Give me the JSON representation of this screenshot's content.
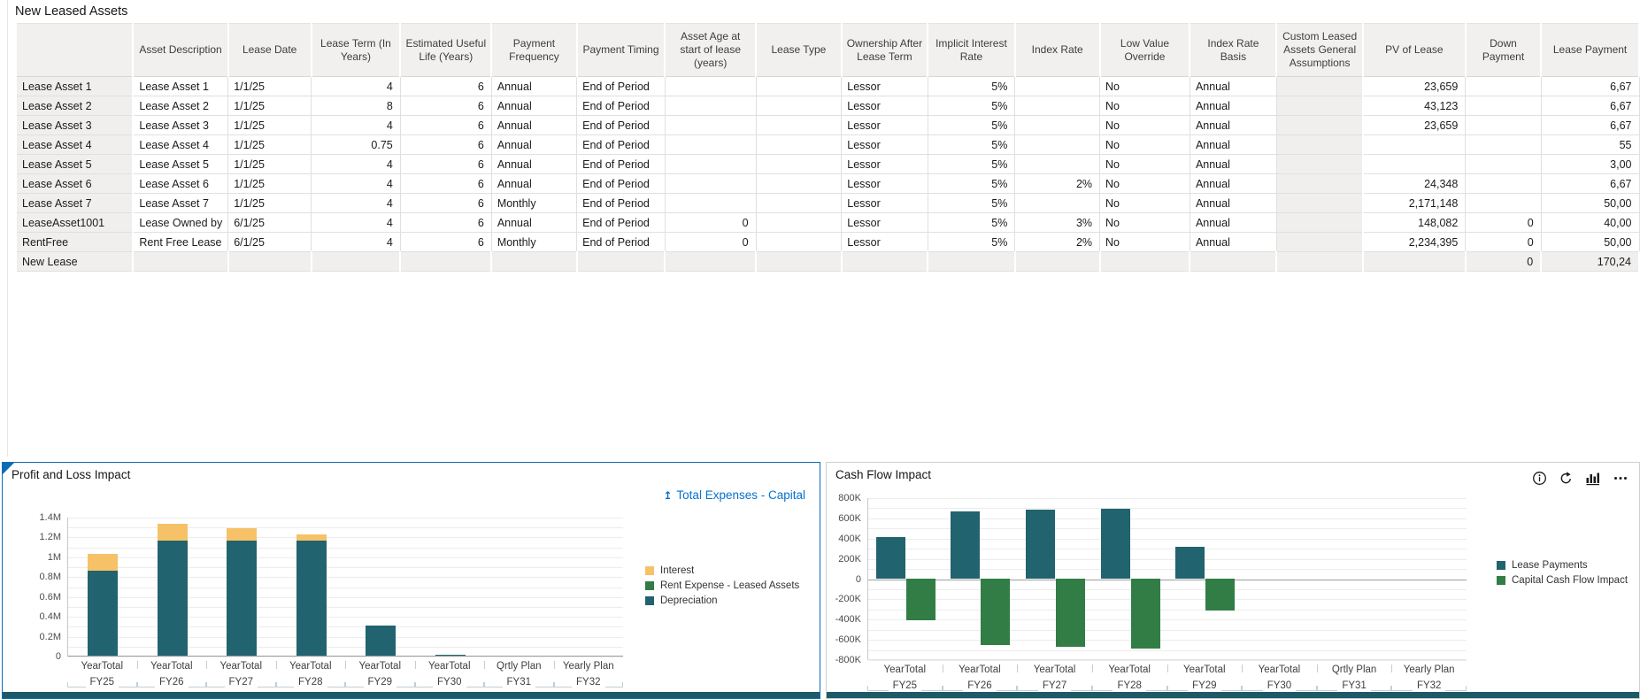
{
  "colors": {
    "accent_blue": "#0572CE",
    "teal": "#21636E",
    "green": "#317D45",
    "amber": "#F6C167",
    "panel_border": "#0A6CB5"
  },
  "table": {
    "title": "New Leased Assets",
    "columns": [
      "",
      "Asset Description",
      "Lease Date",
      "Lease Term (In Years)",
      "Estimated Useful Life (Years)",
      "Payment Frequency",
      "Payment Timing",
      "Asset Age at start of lease (years)",
      "Lease Type",
      "Ownership After Lease Term",
      "Implicit Interest Rate",
      "Index Rate",
      "Low Value Override",
      "Index Rate Basis",
      "Custom Leased Assets General Assumptions",
      "PV of Lease",
      "Down Payment",
      "Lease Payment"
    ],
    "rows": [
      {
        "label": "Lease Asset 1",
        "cells": [
          "Lease Asset 1",
          "1/1/25",
          "4",
          "6",
          "Annual",
          "End of Period",
          "",
          "",
          "Lessor",
          "5%",
          "",
          "No",
          "Annual",
          "",
          "23,659",
          "",
          "6,67"
        ]
      },
      {
        "label": "Lease Asset 2",
        "cells": [
          "Lease Asset 2",
          "1/1/25",
          "8",
          "6",
          "Annual",
          "End of Period",
          "",
          "",
          "Lessor",
          "5%",
          "",
          "No",
          "Annual",
          "",
          "43,123",
          "",
          "6,67"
        ]
      },
      {
        "label": "Lease Asset 3",
        "cells": [
          "Lease Asset 3",
          "1/1/25",
          "4",
          "6",
          "Annual",
          "End of Period",
          "",
          "",
          "Lessor",
          "5%",
          "",
          "No",
          "Annual",
          "",
          "23,659",
          "",
          "6,67"
        ]
      },
      {
        "label": "Lease Asset 4",
        "cells": [
          "Lease Asset 4",
          "1/1/25",
          "0.75",
          "6",
          "Annual",
          "End of Period",
          "",
          "",
          "Lessor",
          "5%",
          "",
          "No",
          "Annual",
          "",
          "",
          "",
          "55"
        ]
      },
      {
        "label": "Lease Asset 5",
        "cells": [
          "Lease Asset 5",
          "1/1/25",
          "4",
          "6",
          "Annual",
          "End of Period",
          "",
          "",
          "Lessor",
          "5%",
          "",
          "No",
          "Annual",
          "",
          "",
          "",
          "3,00"
        ]
      },
      {
        "label": "Lease Asset 6",
        "cells": [
          "Lease Asset 6",
          "1/1/25",
          "4",
          "6",
          "Annual",
          "End of Period",
          "",
          "",
          "Lessor",
          "5%",
          "2%",
          "No",
          "Annual",
          "",
          "24,348",
          "",
          "6,67"
        ]
      },
      {
        "label": "Lease Asset 7",
        "cells": [
          "Lease Asset 7",
          "1/1/25",
          "4",
          "6",
          "Monthly",
          "End of Period",
          "",
          "",
          "Lessor",
          "5%",
          "",
          "No",
          "Annual",
          "",
          "2,171,148",
          "",
          "50,00"
        ]
      },
      {
        "label": "LeaseAsset1001",
        "cells": [
          "Lease Owned by",
          "6/1/25",
          "4",
          "6",
          "Annual",
          "End of Period",
          "0",
          "",
          "Lessor",
          "5%",
          "3%",
          "No",
          "Annual",
          "",
          "148,082",
          "0",
          "40,00"
        ]
      },
      {
        "label": "RentFree",
        "cells": [
          "Rent Free Lease",
          "6/1/25",
          "4",
          "6",
          "Monthly",
          "End of Period",
          "0",
          "",
          "Lessor",
          "5%",
          "2%",
          "No",
          "Annual",
          "",
          "2,234,395",
          "0",
          "50,00"
        ]
      },
      {
        "label": "New Lease",
        "cells": [
          "",
          "",
          "",
          "",
          "",
          "",
          "",
          "",
          "",
          "",
          "",
          "",
          "",
          "",
          "",
          "0",
          "170,24"
        ]
      }
    ]
  },
  "cf_icons": [
    "info",
    "refresh",
    "chart",
    "more"
  ],
  "chart_data": [
    {
      "id": "pl",
      "type": "bar",
      "stacked": true,
      "title": "Profit and Loss Impact",
      "drill_link_label": "Total Expenses - Capital",
      "categories_top": [
        "YearTotal",
        "YearTotal",
        "YearTotal",
        "YearTotal",
        "YearTotal",
        "YearTotal",
        "Qrtly Plan",
        "Yearly Plan"
      ],
      "categories_bottom": [
        "FY25",
        "FY26",
        "FY27",
        "FY28",
        "FY29",
        "FY30",
        "FY31",
        "FY32"
      ],
      "ylim": [
        0,
        1400000
      ],
      "y_tick_step": 200000,
      "y_tick_labels": [
        "0",
        "0.2M",
        "0.4M",
        "0.6M",
        "0.8M",
        "1M",
        "1.2M",
        "1.4M"
      ],
      "grid": true,
      "legend_position": "right",
      "series": [
        {
          "name": "Interest",
          "color": "#F6C167",
          "values": [
            170000,
            170000,
            120000,
            60000,
            0,
            0,
            0,
            0
          ]
        },
        {
          "name": "Rent Expense - Leased Assets",
          "color": "#317D45",
          "values": [
            0,
            0,
            0,
            0,
            0,
            0,
            0,
            0
          ]
        },
        {
          "name": "Depreciation",
          "color": "#21636E",
          "values": [
            860000,
            1160000,
            1160000,
            1160000,
            300000,
            10000,
            0,
            0
          ]
        }
      ]
    },
    {
      "id": "cf",
      "type": "bar",
      "stacked": false,
      "title": "Cash Flow Impact",
      "categories_top": [
        "YearTotal",
        "YearTotal",
        "YearTotal",
        "YearTotal",
        "YearTotal",
        "YearTotal",
        "Qrtly Plan",
        "Yearly Plan"
      ],
      "categories_bottom": [
        "FY25",
        "FY26",
        "FY27",
        "FY28",
        "FY29",
        "FY30",
        "FY31",
        "FY32"
      ],
      "ylim": [
        -800000,
        800000
      ],
      "y_tick_step": 200000,
      "y_tick_labels": [
        "-800K",
        "-600K",
        "-400K",
        "-200K",
        "0",
        "200K",
        "400K",
        "600K",
        "800K"
      ],
      "grid": true,
      "legend_position": "right",
      "series": [
        {
          "name": "Lease Payments",
          "color": "#21636E",
          "values": [
            410000,
            660000,
            675000,
            690000,
            310000,
            0,
            0,
            0
          ]
        },
        {
          "name": "Capital Cash Flow Impact",
          "color": "#317D45",
          "values": [
            -415000,
            -660000,
            -680000,
            -695000,
            -315000,
            0,
            0,
            0
          ]
        }
      ]
    }
  ]
}
